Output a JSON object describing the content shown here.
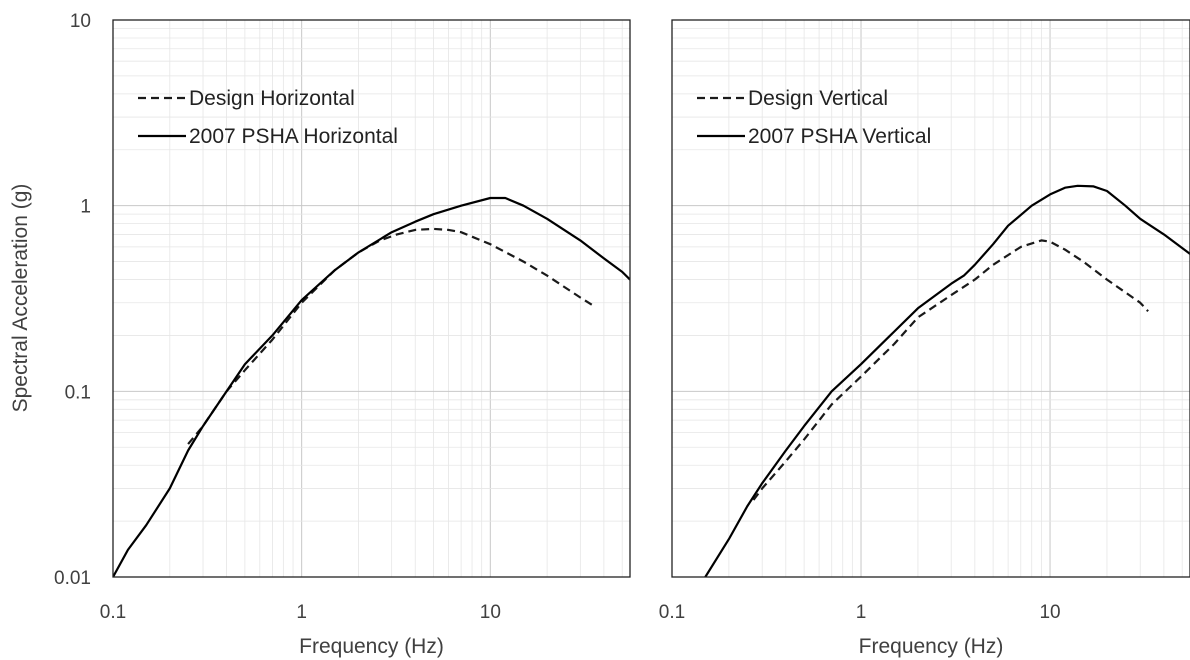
{
  "figure": {
    "ylabel": "Spectral Acceleration (g)"
  },
  "chart_data": [
    {
      "type": "line",
      "xlabel": "Frequency (Hz)",
      "ylabel": "Spectral Acceleration (g)",
      "xscale": "log",
      "yscale": "log",
      "xlim": [
        0.1,
        55
      ],
      "ylim": [
        0.01,
        10
      ],
      "x_ticks": [
        "0.1",
        "1",
        "10"
      ],
      "y_ticks": [
        "0.01",
        "0.1",
        "1",
        "10"
      ],
      "grid": true,
      "legend_position": "top-left",
      "series": [
        {
          "name": "Design Horizontal",
          "style": "dashed",
          "color": "#1a1a1a",
          "x": [
            0.25,
            0.3,
            0.4,
            0.5,
            0.7,
            1.0,
            1.5,
            2.0,
            2.6,
            3.2,
            4.0,
            5.0,
            6.0,
            7.0,
            10.0,
            15.0,
            20.0,
            30.0,
            35.0
          ],
          "y": [
            0.052,
            0.065,
            0.1,
            0.13,
            0.19,
            0.3,
            0.45,
            0.56,
            0.65,
            0.7,
            0.74,
            0.75,
            0.74,
            0.72,
            0.62,
            0.5,
            0.42,
            0.32,
            0.29
          ]
        },
        {
          "name": "2007 PSHA Horizontal",
          "style": "solid",
          "color": "#000000",
          "x": [
            0.1,
            0.12,
            0.15,
            0.2,
            0.25,
            0.3,
            0.4,
            0.5,
            0.7,
            1.0,
            1.5,
            2.0,
            3.0,
            4.0,
            5.0,
            7.0,
            10.0,
            12.0,
            15.0,
            20.0,
            30.0,
            40.0,
            50.0,
            55.0
          ],
          "y": [
            0.01,
            0.014,
            0.019,
            0.03,
            0.048,
            0.065,
            0.1,
            0.14,
            0.2,
            0.31,
            0.45,
            0.56,
            0.72,
            0.82,
            0.9,
            1.0,
            1.1,
            1.1,
            1.0,
            0.85,
            0.65,
            0.52,
            0.44,
            0.4
          ]
        }
      ]
    },
    {
      "type": "line",
      "xlabel": "Frequency (Hz)",
      "xscale": "log",
      "yscale": "log",
      "xlim": [
        0.1,
        55
      ],
      "ylim": [
        0.01,
        10
      ],
      "x_ticks": [
        "0.1",
        "1",
        "10"
      ],
      "y_ticks": [
        "0.01",
        "0.1",
        "1",
        "10"
      ],
      "grid": true,
      "legend_position": "top-left",
      "series": [
        {
          "name": "Design Vertical",
          "style": "dashed",
          "color": "#1a1a1a",
          "x": [
            0.27,
            0.3,
            0.4,
            0.5,
            0.7,
            1.0,
            1.5,
            2.0,
            3.0,
            4.0,
            5.0,
            7.0,
            9.0,
            10.0,
            12.0,
            15.0,
            20.0,
            30.0,
            33.0
          ],
          "y": [
            0.026,
            0.03,
            0.042,
            0.055,
            0.085,
            0.12,
            0.18,
            0.25,
            0.33,
            0.4,
            0.48,
            0.6,
            0.65,
            0.64,
            0.58,
            0.5,
            0.4,
            0.3,
            0.27
          ]
        },
        {
          "name": "2007 PSHA Vertical",
          "style": "solid",
          "color": "#000000",
          "x": [
            0.15,
            0.2,
            0.25,
            0.3,
            0.4,
            0.5,
            0.7,
            1.0,
            1.5,
            2.0,
            3.0,
            3.5,
            4.0,
            5.0,
            6.0,
            8.0,
            10.0,
            12.0,
            14.0,
            17.0,
            20.0,
            25.0,
            30.0,
            40.0,
            55.0
          ],
          "y": [
            0.01,
            0.016,
            0.024,
            0.032,
            0.048,
            0.065,
            0.1,
            0.14,
            0.21,
            0.28,
            0.38,
            0.42,
            0.48,
            0.62,
            0.78,
            1.0,
            1.15,
            1.25,
            1.28,
            1.27,
            1.2,
            1.0,
            0.85,
            0.7,
            0.55
          ]
        }
      ]
    }
  ]
}
